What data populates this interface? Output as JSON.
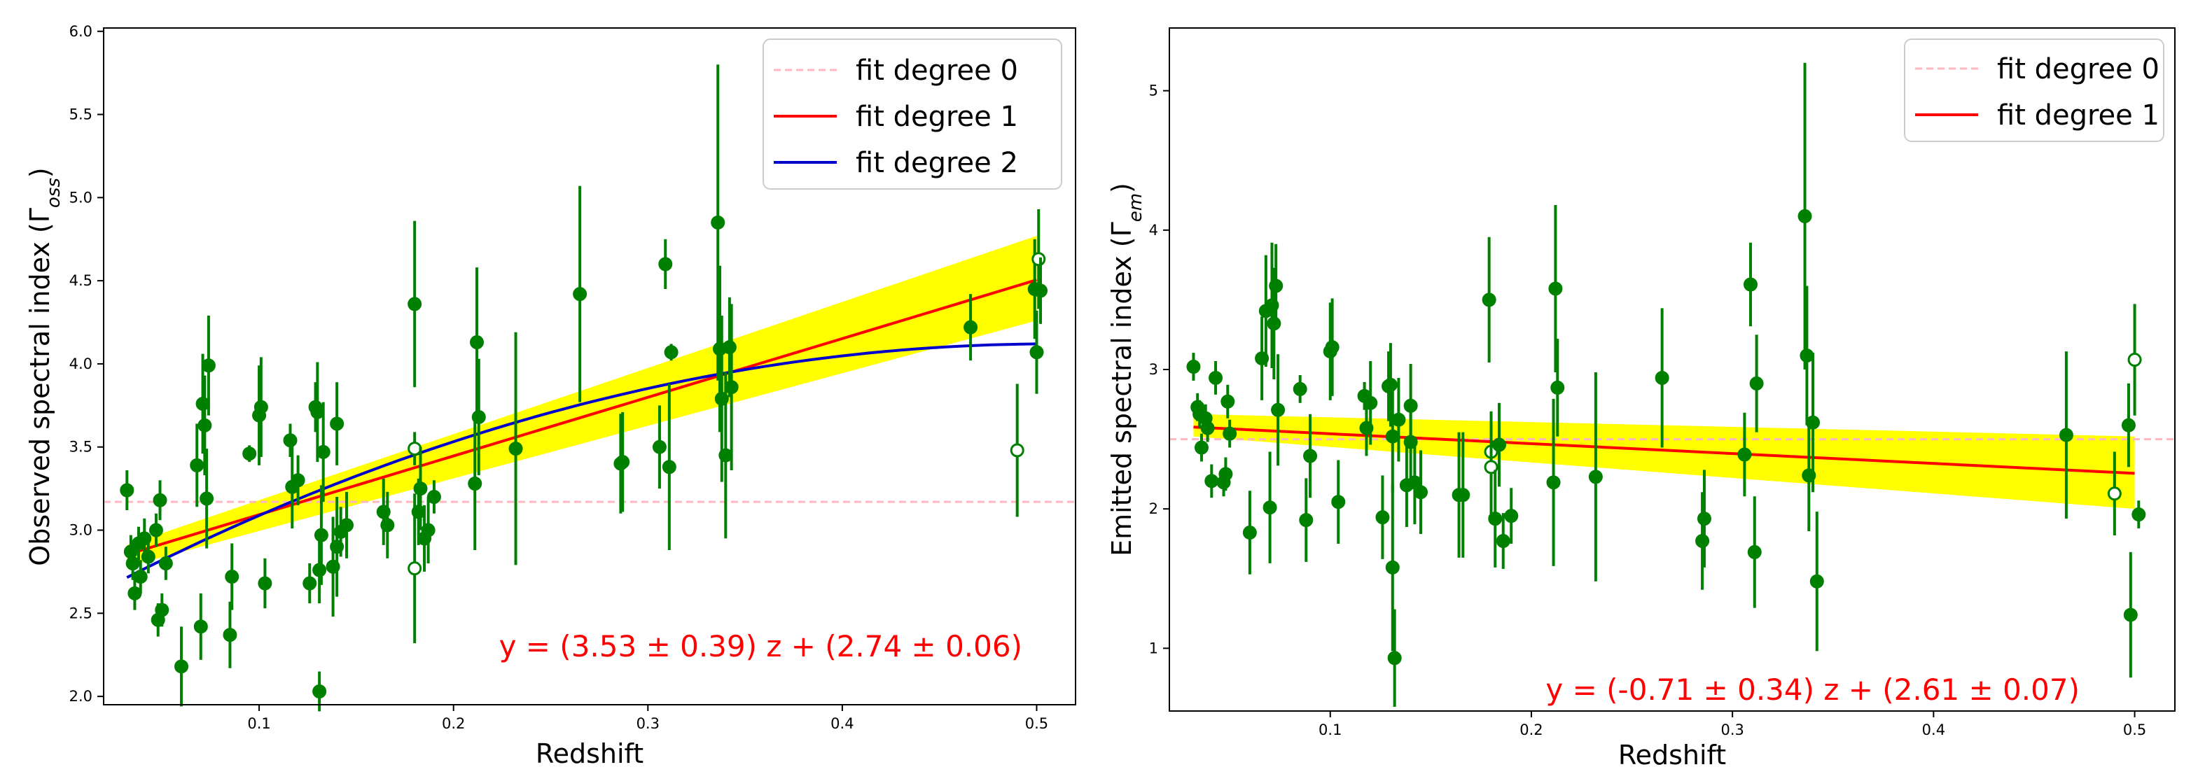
{
  "colors": {
    "points": "#008000",
    "fit0": "#ffb6c1",
    "fit1": "#ff0000",
    "fit2": "#0000cc",
    "band": "#ffff00",
    "equation": "#ff0000"
  },
  "chart_data": [
    {
      "type": "scatter",
      "xlabel": "Redshift",
      "ylabel_main": "Observed spectral index (Γ",
      "ylabel_sub": "oss",
      "ylabel_close": ")",
      "xlim": [
        0.02,
        0.52
      ],
      "ylim": [
        1.95,
        6.02
      ],
      "xticks": [
        "0.1",
        "0.2",
        "0.3",
        "0.4",
        "0.5"
      ],
      "yticks": [
        "2.0",
        "2.5",
        "3.0",
        "3.5",
        "4.0",
        "4.5",
        "5.0",
        "5.5",
        "6.0"
      ],
      "legend": [
        "fit degree 0",
        "fit degree 1",
        "fit degree 2"
      ],
      "equation": "y = (3.53 ± 0.39) z + (2.74 ± 0.06)",
      "fit0": 3.17,
      "fit1": {
        "slope": 3.53,
        "intercept": 2.74
      },
      "fit2": {
        "a": -6.2,
        "b": 6.3,
        "c": 2.52
      },
      "band": {
        "x": [
          0.032,
          0.5
        ],
        "upper": [
          2.91,
          4.77
        ],
        "lower": [
          2.78,
          4.26
        ]
      },
      "points": [
        [
          0.032,
          3.24,
          0.12,
          0
        ],
        [
          0.034,
          2.87,
          0.1,
          0
        ],
        [
          0.035,
          2.8,
          0.1,
          0
        ],
        [
          0.036,
          2.62,
          0.1,
          0
        ],
        [
          0.038,
          2.92,
          0.1,
          0
        ],
        [
          0.039,
          2.72,
          0.1,
          0
        ],
        [
          0.041,
          2.95,
          0.12,
          0
        ],
        [
          0.043,
          2.84,
          0.1,
          0
        ],
        [
          0.047,
          3.0,
          0.1,
          0
        ],
        [
          0.048,
          2.46,
          0.1,
          0
        ],
        [
          0.049,
          3.18,
          0.12,
          0
        ],
        [
          0.05,
          2.52,
          0.1,
          0
        ],
        [
          0.052,
          2.8,
          0.1,
          0
        ],
        [
          0.06,
          2.18,
          0.24,
          0
        ],
        [
          0.068,
          3.39,
          0.25,
          0
        ],
        [
          0.07,
          2.42,
          0.2,
          0
        ],
        [
          0.071,
          3.76,
          0.3,
          0
        ],
        [
          0.072,
          3.63,
          0.3,
          0
        ],
        [
          0.073,
          3.19,
          0.3,
          0
        ],
        [
          0.074,
          3.99,
          0.3,
          0
        ],
        [
          0.085,
          2.37,
          0.2,
          0
        ],
        [
          0.086,
          2.72,
          0.2,
          0
        ],
        [
          0.095,
          3.46,
          0.05,
          0
        ],
        [
          0.1,
          3.69,
          0.3,
          0
        ],
        [
          0.101,
          3.74,
          0.3,
          0
        ],
        [
          0.103,
          2.68,
          0.15,
          0
        ],
        [
          0.116,
          3.54,
          0.1,
          0
        ],
        [
          0.117,
          3.26,
          0.25,
          0
        ],
        [
          0.12,
          3.3,
          0.15,
          0
        ],
        [
          0.126,
          2.68,
          0.12,
          0
        ],
        [
          0.129,
          3.74,
          0.15,
          0
        ],
        [
          0.13,
          3.71,
          0.3,
          0
        ],
        [
          0.131,
          2.76,
          0.2,
          0
        ],
        [
          0.131,
          2.03,
          0.12,
          0
        ],
        [
          0.132,
          2.97,
          0.3,
          0
        ],
        [
          0.133,
          3.47,
          0.3,
          0
        ],
        [
          0.138,
          2.78,
          0.3,
          0
        ],
        [
          0.14,
          3.64,
          0.25,
          0
        ],
        [
          0.14,
          2.9,
          0.3,
          0
        ],
        [
          0.142,
          2.99,
          0.15,
          0
        ],
        [
          0.145,
          3.03,
          0.2,
          0
        ],
        [
          0.164,
          3.11,
          0.2,
          0
        ],
        [
          0.166,
          3.03,
          0.2,
          0
        ],
        [
          0.18,
          4.36,
          0.5,
          0
        ],
        [
          0.18,
          3.49,
          0.1,
          1
        ],
        [
          0.18,
          2.77,
          0.45,
          1
        ],
        [
          0.182,
          3.11,
          0.2,
          0
        ],
        [
          0.183,
          3.25,
          0.25,
          0
        ],
        [
          0.185,
          2.95,
          0.2,
          0
        ],
        [
          0.187,
          3.0,
          0.2,
          0
        ],
        [
          0.19,
          3.2,
          0.1,
          0
        ],
        [
          0.211,
          3.28,
          0.4,
          0
        ],
        [
          0.212,
          4.13,
          0.45,
          0
        ],
        [
          0.213,
          3.68,
          0.35,
          0
        ],
        [
          0.232,
          3.49,
          0.7,
          0
        ],
        [
          0.265,
          4.42,
          0.65,
          0
        ],
        [
          0.286,
          3.4,
          0.3,
          0
        ],
        [
          0.287,
          3.41,
          0.3,
          0
        ],
        [
          0.306,
          3.5,
          0.25,
          0
        ],
        [
          0.309,
          4.6,
          0.15,
          0
        ],
        [
          0.311,
          3.38,
          0.5,
          0
        ],
        [
          0.312,
          4.07,
          0.05,
          0
        ],
        [
          0.336,
          4.85,
          0.95,
          0
        ],
        [
          0.337,
          4.09,
          0.5,
          0
        ],
        [
          0.338,
          3.79,
          0.5,
          0
        ],
        [
          0.34,
          3.45,
          0.5,
          0
        ],
        [
          0.342,
          4.1,
          0.3,
          0
        ],
        [
          0.343,
          3.86,
          0.5,
          0
        ],
        [
          0.466,
          4.22,
          0.2,
          0
        ],
        [
          0.49,
          3.48,
          0.4,
          1
        ],
        [
          0.499,
          4.45,
          0.3,
          0
        ],
        [
          0.5,
          4.07,
          0.25,
          0
        ],
        [
          0.501,
          4.63,
          0.3,
          1
        ],
        [
          0.502,
          4.44,
          0.2,
          0
        ]
      ]
    },
    {
      "type": "scatter",
      "xlabel": "Redshift",
      "ylabel_main": "Emitted spectral index (Γ",
      "ylabel_sub": "em",
      "ylabel_close": ")",
      "xlim": [
        0.02,
        0.52
      ],
      "ylim": [
        0.55,
        5.45
      ],
      "xticks": [
        "0.1",
        "0.2",
        "0.3",
        "0.4",
        "0.5"
      ],
      "yticks": [
        "1",
        "2",
        "3",
        "4",
        "5"
      ],
      "legend": [
        "fit degree 0",
        "fit degree 1"
      ],
      "equation": "y = (-0.71 ± 0.34) z + (2.61 ± 0.07)",
      "fit0": 2.5,
      "fit1": {
        "slope": -0.71,
        "intercept": 2.61
      },
      "band": {
        "x": [
          0.032,
          0.5
        ],
        "upper": [
          2.68,
          2.52
        ],
        "lower": [
          2.52,
          2.0
        ]
      },
      "points": [
        [
          0.032,
          3.02,
          0.1,
          0
        ],
        [
          0.034,
          2.73,
          0.1,
          0
        ],
        [
          0.035,
          2.68,
          0.1,
          0
        ],
        [
          0.036,
          2.44,
          0.1,
          0
        ],
        [
          0.038,
          2.65,
          0.1,
          0
        ],
        [
          0.039,
          2.58,
          0.1,
          0
        ],
        [
          0.041,
          2.2,
          0.12,
          0
        ],
        [
          0.043,
          2.94,
          0.12,
          0
        ],
        [
          0.047,
          2.19,
          0.1,
          0
        ],
        [
          0.048,
          2.25,
          0.12,
          0
        ],
        [
          0.049,
          2.77,
          0.12,
          0
        ],
        [
          0.05,
          2.54,
          0.1,
          0
        ],
        [
          0.06,
          1.83,
          0.3,
          0
        ],
        [
          0.066,
          3.08,
          0.3,
          0
        ],
        [
          0.068,
          3.42,
          0.4,
          0
        ],
        [
          0.07,
          2.01,
          0.4,
          0
        ],
        [
          0.071,
          3.46,
          0.45,
          0
        ],
        [
          0.072,
          3.33,
          0.4,
          0
        ],
        [
          0.073,
          3.6,
          0.3,
          0
        ],
        [
          0.074,
          2.71,
          0.4,
          0
        ],
        [
          0.085,
          2.86,
          0.1,
          0
        ],
        [
          0.088,
          1.92,
          0.3,
          0
        ],
        [
          0.09,
          2.38,
          0.3,
          0
        ],
        [
          0.1,
          3.13,
          0.35,
          0
        ],
        [
          0.101,
          3.16,
          0.35,
          0
        ],
        [
          0.104,
          2.05,
          0.3,
          0
        ],
        [
          0.117,
          2.81,
          0.1,
          0
        ],
        [
          0.118,
          2.58,
          0.2,
          0
        ],
        [
          0.12,
          2.76,
          0.3,
          0
        ],
        [
          0.126,
          1.94,
          0.3,
          0
        ],
        [
          0.129,
          2.88,
          0.25,
          0
        ],
        [
          0.13,
          2.89,
          0.3,
          0
        ],
        [
          0.131,
          2.52,
          0.4,
          0
        ],
        [
          0.131,
          1.58,
          0.6,
          0
        ],
        [
          0.132,
          0.93,
          0.35,
          0
        ],
        [
          0.134,
          2.64,
          0.3,
          0
        ],
        [
          0.138,
          2.17,
          0.3,
          0
        ],
        [
          0.14,
          2.74,
          0.3,
          0
        ],
        [
          0.14,
          2.48,
          0.3,
          0
        ],
        [
          0.142,
          2.19,
          0.3,
          0
        ],
        [
          0.145,
          2.12,
          0.3,
          0
        ],
        [
          0.164,
          2.1,
          0.45,
          0
        ],
        [
          0.166,
          2.1,
          0.45,
          0
        ],
        [
          0.179,
          3.5,
          0.45,
          0
        ],
        [
          0.18,
          2.41,
          0.2,
          1
        ],
        [
          0.18,
          2.3,
          0.4,
          1
        ],
        [
          0.182,
          1.93,
          0.35,
          0
        ],
        [
          0.184,
          2.46,
          0.3,
          0
        ],
        [
          0.186,
          1.77,
          0.2,
          0
        ],
        [
          0.19,
          1.95,
          0.2,
          0
        ],
        [
          0.211,
          2.19,
          0.6,
          0
        ],
        [
          0.212,
          3.58,
          0.6,
          0
        ],
        [
          0.213,
          2.87,
          0.35,
          0
        ],
        [
          0.232,
          2.23,
          0.75,
          0
        ],
        [
          0.265,
          2.94,
          0.5,
          0
        ],
        [
          0.285,
          1.77,
          0.35,
          0
        ],
        [
          0.286,
          1.93,
          0.35,
          0
        ],
        [
          0.306,
          2.39,
          0.3,
          0
        ],
        [
          0.309,
          3.61,
          0.3,
          0
        ],
        [
          0.311,
          1.69,
          0.4,
          0
        ],
        [
          0.312,
          2.9,
          0.35,
          0
        ],
        [
          0.336,
          4.1,
          1.1,
          0
        ],
        [
          0.337,
          3.1,
          0.5,
          0
        ],
        [
          0.338,
          2.24,
          0.4,
          0
        ],
        [
          0.34,
          2.62,
          0.5,
          0
        ],
        [
          0.342,
          1.48,
          0.5,
          0
        ],
        [
          0.466,
          2.53,
          0.6,
          0
        ],
        [
          0.49,
          2.11,
          0.3,
          1
        ],
        [
          0.497,
          2.6,
          0.3,
          0
        ],
        [
          0.498,
          1.24,
          0.45,
          0
        ],
        [
          0.5,
          3.07,
          0.4,
          1
        ],
        [
          0.502,
          1.96,
          0.1,
          0
        ]
      ]
    }
  ]
}
